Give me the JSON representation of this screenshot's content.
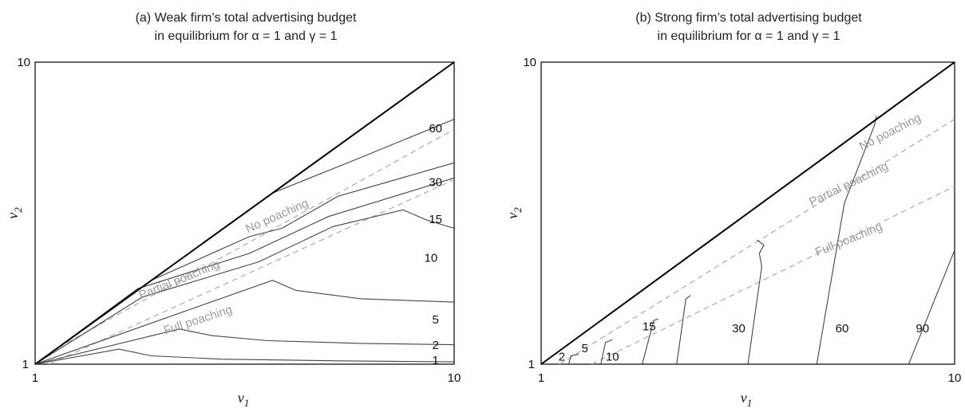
{
  "chart_data": [
    {
      "type": "line",
      "subtype": "contour",
      "title": [
        "(a) Weak firm’s total advertising budget",
        "in equilibrium for α = 1 and γ = 1"
      ],
      "xlabel": "v",
      "xlabel_sub": "1",
      "ylabel": "v",
      "ylabel_sub": "2",
      "xlim": [
        1,
        10
      ],
      "ylim": [
        1,
        10
      ],
      "xticks": [
        "1",
        "10"
      ],
      "yticks": [
        "1",
        "10"
      ],
      "diagonal": [
        [
          1,
          1
        ],
        [
          10,
          10
        ]
      ],
      "regions": [
        {
          "label": "No poaching",
          "x": 6.2,
          "y": 5.4,
          "angle": -24
        },
        {
          "label": "Partial poaching",
          "x": 4.1,
          "y": 3.5,
          "angle": -22
        },
        {
          "label": "Full poaching",
          "x": 4.5,
          "y": 2.3,
          "angle": -18
        }
      ],
      "boundaries": [
        [
          [
            1.5,
            1.5
          ],
          [
            10,
            8.0
          ]
        ],
        [
          [
            1.3,
            1.0
          ],
          [
            10,
            6.5
          ]
        ]
      ],
      "contours": [
        {
          "level": "1",
          "label_at": [
            9.6,
            1.1
          ],
          "points": [
            [
              1,
              1
            ],
            [
              2.8,
              1.45
            ],
            [
              3.5,
              1.25
            ],
            [
              5,
              1.15
            ],
            [
              7.5,
              1.1
            ],
            [
              10,
              1.07
            ]
          ]
        },
        {
          "level": "2",
          "label_at": [
            9.6,
            1.55
          ],
          "points": [
            [
              1,
              1
            ],
            [
              4.1,
              2.05
            ],
            [
              4.8,
              1.85
            ],
            [
              6,
              1.7
            ],
            [
              8,
              1.62
            ],
            [
              10,
              1.58
            ]
          ]
        },
        {
          "level": "5",
          "label_at": [
            9.6,
            2.3
          ],
          "points": [
            [
              1,
              1
            ],
            [
              6.1,
              3.5
            ],
            [
              6.6,
              3.2
            ],
            [
              8,
              2.95
            ],
            [
              10,
              2.85
            ]
          ]
        },
        {
          "level": "10",
          "label_at": [
            9.5,
            4.15
          ],
          "points": [
            [
              1,
              1
            ],
            [
              3.3,
              3.0
            ],
            [
              5.8,
              4.05
            ],
            [
              7.4,
              5.1
            ],
            [
              8.9,
              5.6
            ],
            [
              9.4,
              5.3
            ],
            [
              10,
              5.05
            ]
          ]
        },
        {
          "level": "15",
          "label_at": [
            9.6,
            5.3
          ],
          "points": [
            [
              1,
              1
            ],
            [
              3.2,
              3.25
            ],
            [
              5.6,
              4.3
            ],
            [
              7.3,
              5.4
            ],
            [
              10,
              6.55
            ]
          ]
        },
        {
          "level": "30",
          "label_at": [
            9.6,
            6.4
          ],
          "points": [
            [
              1,
              1
            ],
            [
              3.5,
              3.5
            ],
            [
              5.6,
              4.8
            ],
            [
              6.3,
              5.05
            ],
            [
              7.5,
              6.0
            ],
            [
              10,
              7.0
            ]
          ]
        },
        {
          "level": "60",
          "label_at": [
            9.6,
            8.0
          ],
          "points": [
            [
              1,
              1
            ],
            [
              6.1,
              6.1
            ],
            [
              7.8,
              7.05
            ],
            [
              10,
              8.3
            ]
          ]
        }
      ]
    },
    {
      "type": "line",
      "subtype": "contour",
      "title": [
        "(b) Strong firm’s total advertising budget",
        "in equilibrium for α = 1 and γ = 1"
      ],
      "xlabel": "v",
      "xlabel_sub": "1",
      "ylabel": "v",
      "ylabel_sub": "2",
      "xlim": [
        1,
        10
      ],
      "ylim": [
        1,
        10
      ],
      "xticks": [
        "1",
        "10"
      ],
      "yticks": [
        "1",
        "10"
      ],
      "diagonal": [
        [
          1,
          1
        ],
        [
          10,
          10
        ]
      ],
      "regions": [
        {
          "label": "No poaching",
          "x": 8.6,
          "y": 7.9,
          "angle": -27
        },
        {
          "label": "Partial poaching",
          "x": 7.7,
          "y": 6.35,
          "angle": -26
        },
        {
          "label": "Full poaching",
          "x": 7.7,
          "y": 4.7,
          "angle": -22
        }
      ],
      "boundaries": [
        [
          [
            1.4,
            1.0
          ],
          [
            10,
            8.3
          ]
        ],
        [
          [
            2.1,
            1.0
          ],
          [
            10,
            6.3
          ]
        ]
      ],
      "contours": [
        {
          "level": "2",
          "label_at": [
            1.45,
            1.2
          ],
          "points": [
            [
              1.6,
              1.0
            ],
            [
              1.65,
              1.25
            ],
            [
              1.82,
              1.3
            ]
          ]
        },
        {
          "level": "5",
          "label_at": [
            1.95,
            1.45
          ],
          "points": [
            [
              2.3,
              1.0
            ],
            [
              2.4,
              1.65
            ],
            [
              2.55,
              1.73
            ]
          ]
        },
        {
          "level": "10",
          "label_at": [
            2.55,
            1.2
          ],
          "points": [
            [
              3.2,
              1.0
            ],
            [
              3.45,
              2.3
            ],
            [
              3.55,
              2.35
            ]
          ]
        },
        {
          "level": "15",
          "label_at": [
            3.35,
            2.1
          ],
          "points": [
            [
              3.95,
              1.0
            ],
            [
              4.15,
              2.95
            ],
            [
              4.25,
              3.05
            ]
          ]
        },
        {
          "level": "30",
          "label_at": [
            5.3,
            2.05
          ],
          "points": [
            [
              5.5,
              1.0
            ],
            [
              5.8,
              3.9
            ],
            [
              5.75,
              4.3
            ],
            [
              5.85,
              4.55
            ],
            [
              5.7,
              4.7
            ]
          ]
        },
        {
          "level": "60",
          "label_at": [
            7.55,
            2.05
          ],
          "points": [
            [
              7.0,
              1.0
            ],
            [
              7.6,
              5.8
            ],
            [
              8.25,
              8.1
            ],
            [
              8.3,
              8.4
            ]
          ]
        },
        {
          "level": "90",
          "label_at": [
            9.3,
            2.05
          ],
          "points": [
            [
              9.0,
              1.0
            ],
            [
              10,
              4.4
            ]
          ]
        }
      ]
    }
  ]
}
